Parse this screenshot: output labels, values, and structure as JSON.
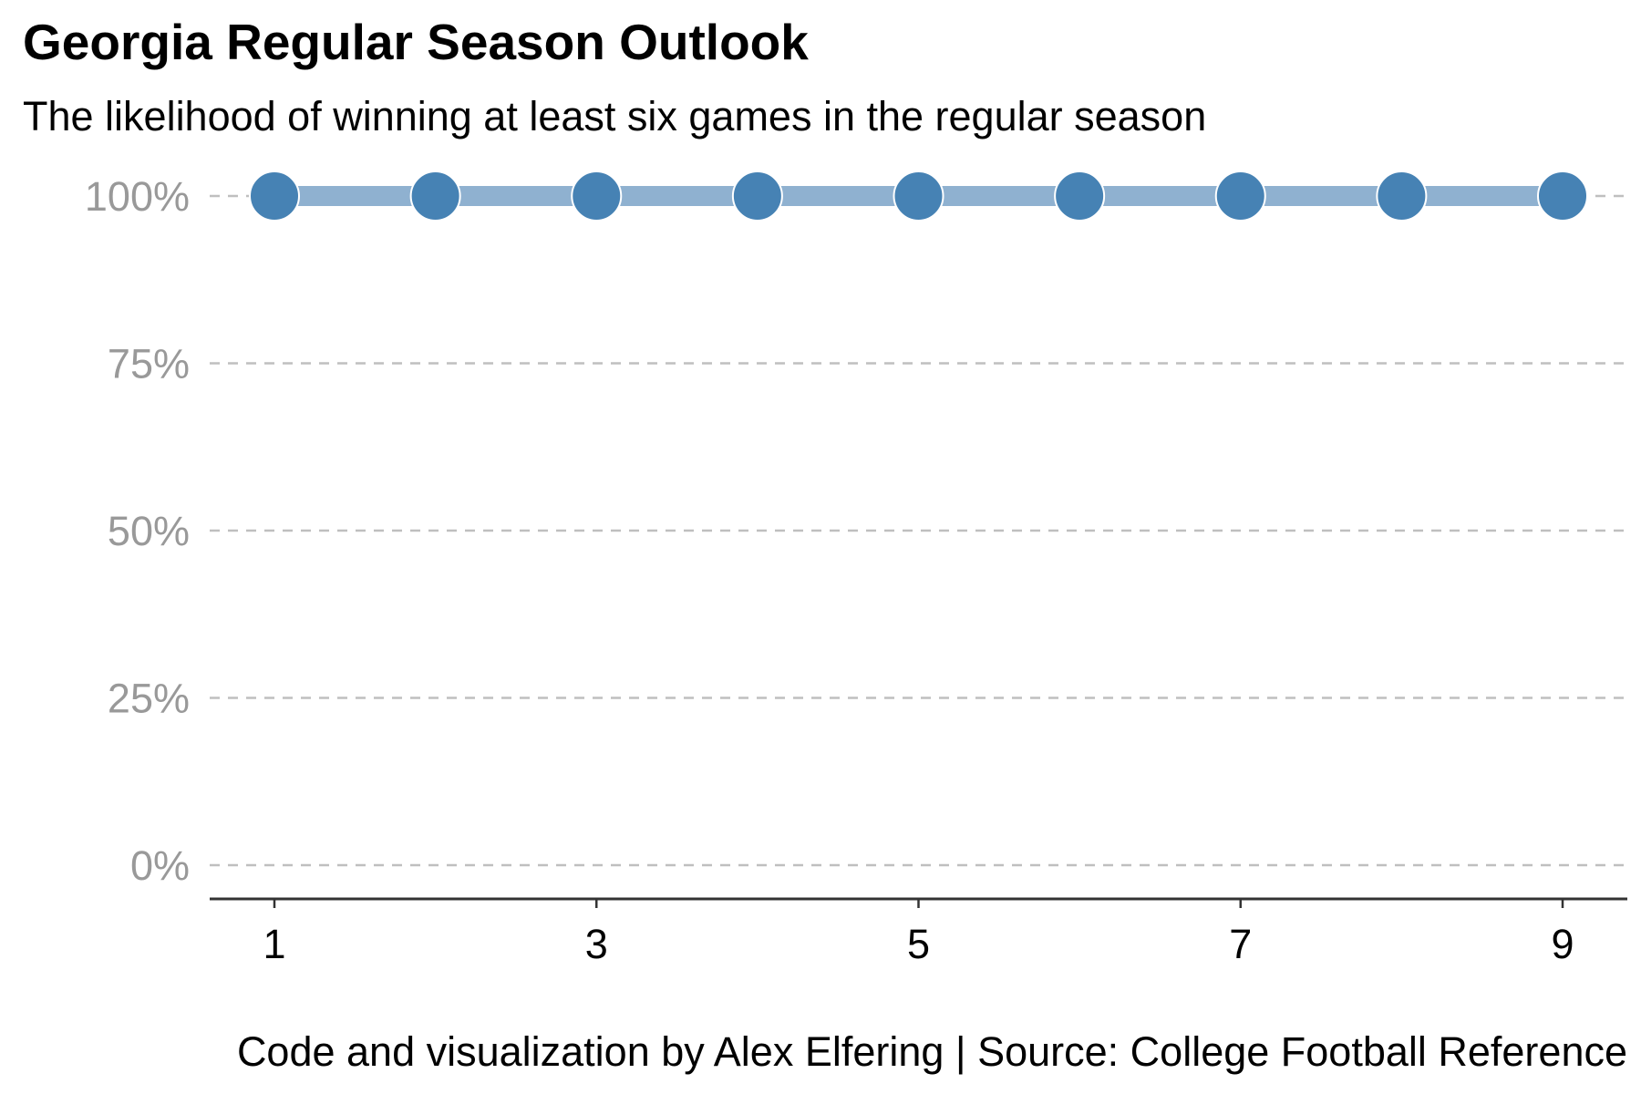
{
  "chart_data": {
    "type": "line",
    "title": "Georgia Regular Season Outlook",
    "subtitle": "The likelihood of winning at least six games in the regular season",
    "caption": "Code and visualization by Alex Elfering | Source: College Football Reference",
    "xlabel": "",
    "ylabel": "",
    "x": [
      1,
      2,
      3,
      4,
      5,
      6,
      7,
      8,
      9
    ],
    "series": [
      {
        "values": [
          100,
          100,
          100,
          100,
          100,
          100,
          100,
          100,
          100
        ]
      }
    ],
    "xlim": [
      1,
      9
    ],
    "ylim": [
      0,
      100
    ],
    "x_ticks": [
      1,
      3,
      5,
      7,
      9
    ],
    "x_tick_labels": [
      "1",
      "3",
      "5",
      "7",
      "9"
    ],
    "y_ticks": [
      0,
      25,
      50,
      75,
      100
    ],
    "y_tick_labels": [
      "0%",
      "25%",
      "50%",
      "75%",
      "100%"
    ],
    "grid": "horizontal dashed",
    "legend": "none",
    "colors": {
      "point": "#4682b4",
      "line": "#8fb1d0",
      "grid": "#bfbfbf",
      "y_tick_text": "#999999",
      "axis": "#333333"
    }
  }
}
